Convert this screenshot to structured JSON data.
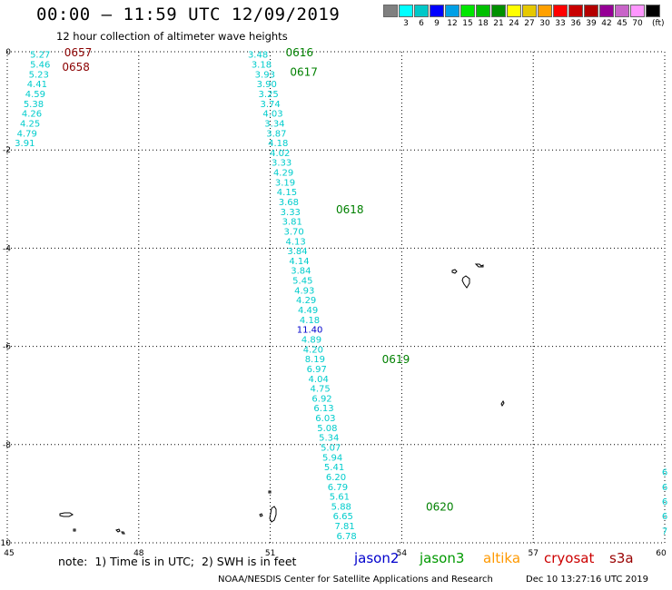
{
  "header": {
    "title": "00:00 – 11:59 UTC 12/09/2019",
    "subtitle": "12 hour collection of altimeter wave heights"
  },
  "legend": {
    "unit": "(ft)",
    "colors": [
      "#808080",
      "#00ffff",
      "#00c8c8",
      "#0000ff",
      "#00a0e6",
      "#00e600",
      "#00c000",
      "#009000",
      "#ffff00",
      "#e6c800",
      "#ffa000",
      "#ff0000",
      "#c80000",
      "#b40000",
      "#960096",
      "#c864c8",
      "#ff96ff",
      "#000000"
    ],
    "labels": [
      "3",
      "6",
      "9",
      "12",
      "15",
      "18",
      "21",
      "24",
      "27",
      "30",
      "33",
      "36",
      "39",
      "42",
      "45",
      "70"
    ]
  },
  "chart_data": {
    "type": "scatter",
    "title": "00:00 – 11:59 UTC 12/09/2019",
    "subtitle": "12 hour collection of altimeter wave heights",
    "xlabel": "",
    "ylabel": "",
    "xlim": [
      45,
      60
    ],
    "ylim": [
      -10,
      0
    ],
    "x_ticks": [
      45,
      48,
      51,
      54,
      57,
      60
    ],
    "y_ticks": [
      0,
      -2,
      -4,
      -6,
      -8,
      -10
    ],
    "grid": true,
    "units": "ft",
    "series": [
      {
        "name": "jason3",
        "color": "#00cccc",
        "points": [
          {
            "lon": 45.75,
            "lat": -0.05,
            "swh": "5.27"
          },
          {
            "lon": 45.75,
            "lat": -0.25,
            "swh": "5.46"
          },
          {
            "lon": 45.72,
            "lat": -0.45,
            "swh": "5.23"
          },
          {
            "lon": 45.68,
            "lat": -0.65,
            "swh": "4.41"
          },
          {
            "lon": 45.64,
            "lat": -0.85,
            "swh": "4.59"
          },
          {
            "lon": 45.6,
            "lat": -1.05,
            "swh": "5.38"
          },
          {
            "lon": 45.56,
            "lat": -1.25,
            "swh": "4.26"
          },
          {
            "lon": 45.52,
            "lat": -1.45,
            "swh": "4.25"
          },
          {
            "lon": 45.45,
            "lat": -1.65,
            "swh": "4.79"
          },
          {
            "lon": 45.4,
            "lat": -1.85,
            "swh": "3.91"
          },
          {
            "lon": 50.72,
            "lat": -0.05,
            "swh": "3.48"
          },
          {
            "lon": 50.8,
            "lat": -0.25,
            "swh": "3.18"
          },
          {
            "lon": 50.88,
            "lat": -0.45,
            "swh": "3.93"
          },
          {
            "lon": 50.92,
            "lat": -0.65,
            "swh": "3.90"
          },
          {
            "lon": 50.96,
            "lat": -0.85,
            "swh": "3.25"
          },
          {
            "lon": 51.0,
            "lat": -1.05,
            "swh": "3.74"
          },
          {
            "lon": 51.06,
            "lat": -1.25,
            "swh": "4.03"
          },
          {
            "lon": 51.1,
            "lat": -1.45,
            "swh": "3.34"
          },
          {
            "lon": 51.14,
            "lat": -1.65,
            "swh": "3.87"
          },
          {
            "lon": 51.18,
            "lat": -1.85,
            "swh": "4.18"
          },
          {
            "lon": 51.22,
            "lat": -2.05,
            "swh": "4.02"
          },
          {
            "lon": 51.26,
            "lat": -2.25,
            "swh": "3.33"
          },
          {
            "lon": 51.3,
            "lat": -2.45,
            "swh": "4.29"
          },
          {
            "lon": 51.34,
            "lat": -2.65,
            "swh": "3.19"
          },
          {
            "lon": 51.38,
            "lat": -2.85,
            "swh": "4.15"
          },
          {
            "lon": 51.42,
            "lat": -3.05,
            "swh": "3.68"
          },
          {
            "lon": 51.46,
            "lat": -3.25,
            "swh": "3.33"
          },
          {
            "lon": 51.5,
            "lat": -3.45,
            "swh": "3.81"
          },
          {
            "lon": 51.54,
            "lat": -3.65,
            "swh": "3.70"
          },
          {
            "lon": 51.58,
            "lat": -3.85,
            "swh": "4.13"
          },
          {
            "lon": 51.62,
            "lat": -4.05,
            "swh": "3.84"
          },
          {
            "lon": 51.66,
            "lat": -4.25,
            "swh": "4.14"
          },
          {
            "lon": 51.7,
            "lat": -4.45,
            "swh": "3.84"
          },
          {
            "lon": 51.74,
            "lat": -4.65,
            "swh": "5.45"
          },
          {
            "lon": 51.78,
            "lat": -4.85,
            "swh": "4.93"
          },
          {
            "lon": 51.82,
            "lat": -5.05,
            "swh": "4.29"
          },
          {
            "lon": 51.86,
            "lat": -5.25,
            "swh": "4.49"
          },
          {
            "lon": 51.9,
            "lat": -5.45,
            "swh": "4.18"
          },
          {
            "lon": 51.94,
            "lat": -5.85,
            "swh": "4.89"
          },
          {
            "lon": 51.98,
            "lat": -6.05,
            "swh": "4.20"
          },
          {
            "lon": 52.02,
            "lat": -6.25,
            "swh": "8.19"
          },
          {
            "lon": 52.06,
            "lat": -6.45,
            "swh": "6.97"
          },
          {
            "lon": 52.1,
            "lat": -6.65,
            "swh": "4.04"
          },
          {
            "lon": 52.14,
            "lat": -6.85,
            "swh": "4.75"
          },
          {
            "lon": 52.18,
            "lat": -7.05,
            "swh": "6.92"
          },
          {
            "lon": 52.22,
            "lat": -7.25,
            "swh": "6.13"
          },
          {
            "lon": 52.26,
            "lat": -7.45,
            "swh": "6.03"
          },
          {
            "lon": 52.3,
            "lat": -7.65,
            "swh": "5.08"
          },
          {
            "lon": 52.34,
            "lat": -7.85,
            "swh": "5.34"
          },
          {
            "lon": 52.38,
            "lat": -8.05,
            "swh": "5.07"
          },
          {
            "lon": 52.42,
            "lat": -8.25,
            "swh": "5.94"
          },
          {
            "lon": 52.46,
            "lat": -8.45,
            "swh": "5.41"
          },
          {
            "lon": 52.5,
            "lat": -8.65,
            "swh": "6.20"
          },
          {
            "lon": 52.54,
            "lat": -8.85,
            "swh": "6.79"
          },
          {
            "lon": 52.58,
            "lat": -9.05,
            "swh": "5.61"
          },
          {
            "lon": 52.62,
            "lat": -9.25,
            "swh": "5.88"
          },
          {
            "lon": 52.66,
            "lat": -9.45,
            "swh": "6.65"
          },
          {
            "lon": 52.7,
            "lat": -9.65,
            "swh": "7.81"
          },
          {
            "lon": 52.74,
            "lat": -9.85,
            "swh": "6.78"
          },
          {
            "lon": 60.0,
            "lat": -8.55,
            "swh": "6"
          },
          {
            "lon": 60.0,
            "lat": -8.85,
            "swh": "6"
          },
          {
            "lon": 60.0,
            "lat": -9.15,
            "swh": "6"
          },
          {
            "lon": 60.0,
            "lat": -9.45,
            "swh": "6"
          },
          {
            "lon": 60.0,
            "lat": -9.75,
            "swh": "7"
          }
        ]
      },
      {
        "name": "jason2",
        "color": "#0000cc",
        "points": [
          {
            "lon": 51.9,
            "lat": -5.65,
            "swh": "11.40"
          }
        ]
      }
    ],
    "annotations": [
      {
        "text": "0657",
        "lon": 46.3,
        "lat": 0.0,
        "color": "#8b0000"
      },
      {
        "text": "0658",
        "lon": 46.25,
        "lat": -0.3,
        "color": "#8b0000"
      },
      {
        "text": "0616",
        "lon": 51.35,
        "lat": 0.0,
        "color": "#008000"
      },
      {
        "text": "0617",
        "lon": 51.45,
        "lat": -0.4,
        "color": "#008000"
      },
      {
        "text": "0618",
        "lon": 52.5,
        "lat": -3.2,
        "color": "#008000"
      },
      {
        "text": "0619",
        "lon": 53.55,
        "lat": -6.25,
        "color": "#008000"
      },
      {
        "text": "0620",
        "lon": 54.55,
        "lat": -9.25,
        "color": "#008000"
      }
    ]
  },
  "footer": {
    "note": "note:  1) Time is in UTC;  2) SWH is in feet",
    "satellites": [
      {
        "label": "jason2",
        "color": "#0000cc"
      },
      {
        "label": "jason3",
        "color": "#009900"
      },
      {
        "label": "altika",
        "color": "#ff9900"
      },
      {
        "label": "cryosat",
        "color": "#cc0000"
      },
      {
        "label": "s3a",
        "color": "#990000"
      }
    ],
    "credit": "NOAA/NESDIS Center for Satellite Applications and Research",
    "timestamp": "Dec 10 13:27:16 UTC 2019"
  }
}
